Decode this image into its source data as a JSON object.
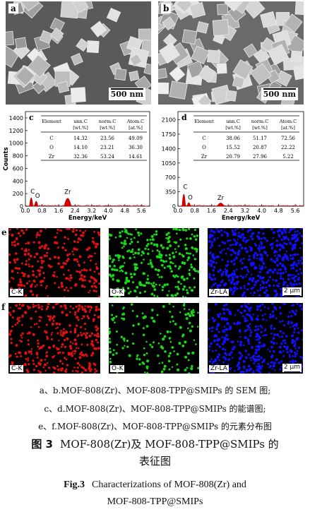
{
  "panels": {
    "a": {
      "letter": "a",
      "scale": "500 nm"
    },
    "b": {
      "letter": "b",
      "scale": "500 nm"
    }
  },
  "chart_data": [
    {
      "type": "bar",
      "panel": "c",
      "ylabel": "Counts",
      "xlabel": "Energy/keV",
      "xlim": [
        0,
        6.0
      ],
      "ylim": [
        0,
        1500
      ],
      "yticks": [
        0,
        200,
        400,
        600,
        800,
        1000,
        1200,
        1400
      ],
      "xticks": [
        "0.0",
        "0.8",
        "1.6",
        "2.4",
        "3.2",
        "4.0",
        "4.8",
        "5.6"
      ],
      "peaks": [
        {
          "label": "C",
          "x": 0.28,
          "y": 170
        },
        {
          "label": "O",
          "x": 0.52,
          "y": 100
        },
        {
          "label": "Zr",
          "x": 2.04,
          "y": 160
        }
      ],
      "table": {
        "headers": [
          [
            "Element",
            ""
          ],
          [
            "unn.C",
            "[wt.%]"
          ],
          [
            "norm.C",
            "[wt.%]"
          ],
          [
            "Atom.C",
            "[at.%]"
          ]
        ],
        "rows": [
          [
            "C",
            "14.32",
            "23.56",
            "49.09"
          ],
          [
            "O",
            "14.10",
            "23.21",
            "36.30"
          ],
          [
            "Zr",
            "32.36",
            "53.24",
            "14.61"
          ]
        ]
      }
    },
    {
      "type": "bar",
      "panel": "d",
      "ylabel": "",
      "xlabel": "Energy/keV",
      "xlim": [
        0,
        6.0
      ],
      "ylim": [
        0,
        2300
      ],
      "yticks": [
        0,
        350,
        700,
        1050,
        1400,
        1750,
        2100
      ],
      "xticks": [
        "0.0",
        "0.8",
        "1.6",
        "2.4",
        "3.2",
        "4.0",
        "4.8",
        "5.6"
      ],
      "peaks": [
        {
          "label": "C",
          "x": 0.28,
          "y": 370
        },
        {
          "label": "O",
          "x": 0.52,
          "y": 110
        },
        {
          "label": "Zr",
          "x": 2.04,
          "y": 100
        }
      ],
      "table": {
        "headers": [
          [
            "Element",
            ""
          ],
          [
            "unn.C",
            "[wt.%]"
          ],
          [
            "norm.C",
            "[wt.%]"
          ],
          [
            "Atom.C",
            "[at.%]"
          ]
        ],
        "rows": [
          [
            "C",
            "38.06",
            "51.17",
            "72.56"
          ],
          [
            "O",
            "15.52",
            "20.87",
            "22.22"
          ],
          [
            "Zr",
            "20.79",
            "27.96",
            "5.22"
          ]
        ]
      }
    }
  ],
  "maps": {
    "e": {
      "letter": "e",
      "labels": [
        "C-K",
        "O-K",
        "Zr-LA"
      ],
      "scale": "2 μm"
    },
    "f": {
      "letter": "f",
      "labels": [
        "C-K",
        "O-K",
        "Zr-LA"
      ],
      "scale": "2 μm"
    },
    "colors": {
      "red": "#e01010",
      "green": "#18d818",
      "blue": "#1010ff"
    }
  },
  "caption": {
    "line1": "a、b.MOF-808(Zr)、MOF-808-TPP@SMIPs 的 SEM 图;",
    "line2": "c、d.MOF-808(Zr)、MOF-808-TPP@SMIPs 的能谱图;",
    "line3": "e、f.MOF-808(Zr)、MOF-808-TPP@SMIPs 的元素分布图",
    "fig_label": "图 3",
    "fig_title_1": "MOF-808(Zr)及 MOF-808-TPP@SMIPs 的",
    "fig_title_2": "表征图",
    "en_label": "Fig.3",
    "en_title_1": "Characterizations of MOF-808(Zr) and",
    "en_title_2": "MOF-808-TPP@SMIPs"
  }
}
